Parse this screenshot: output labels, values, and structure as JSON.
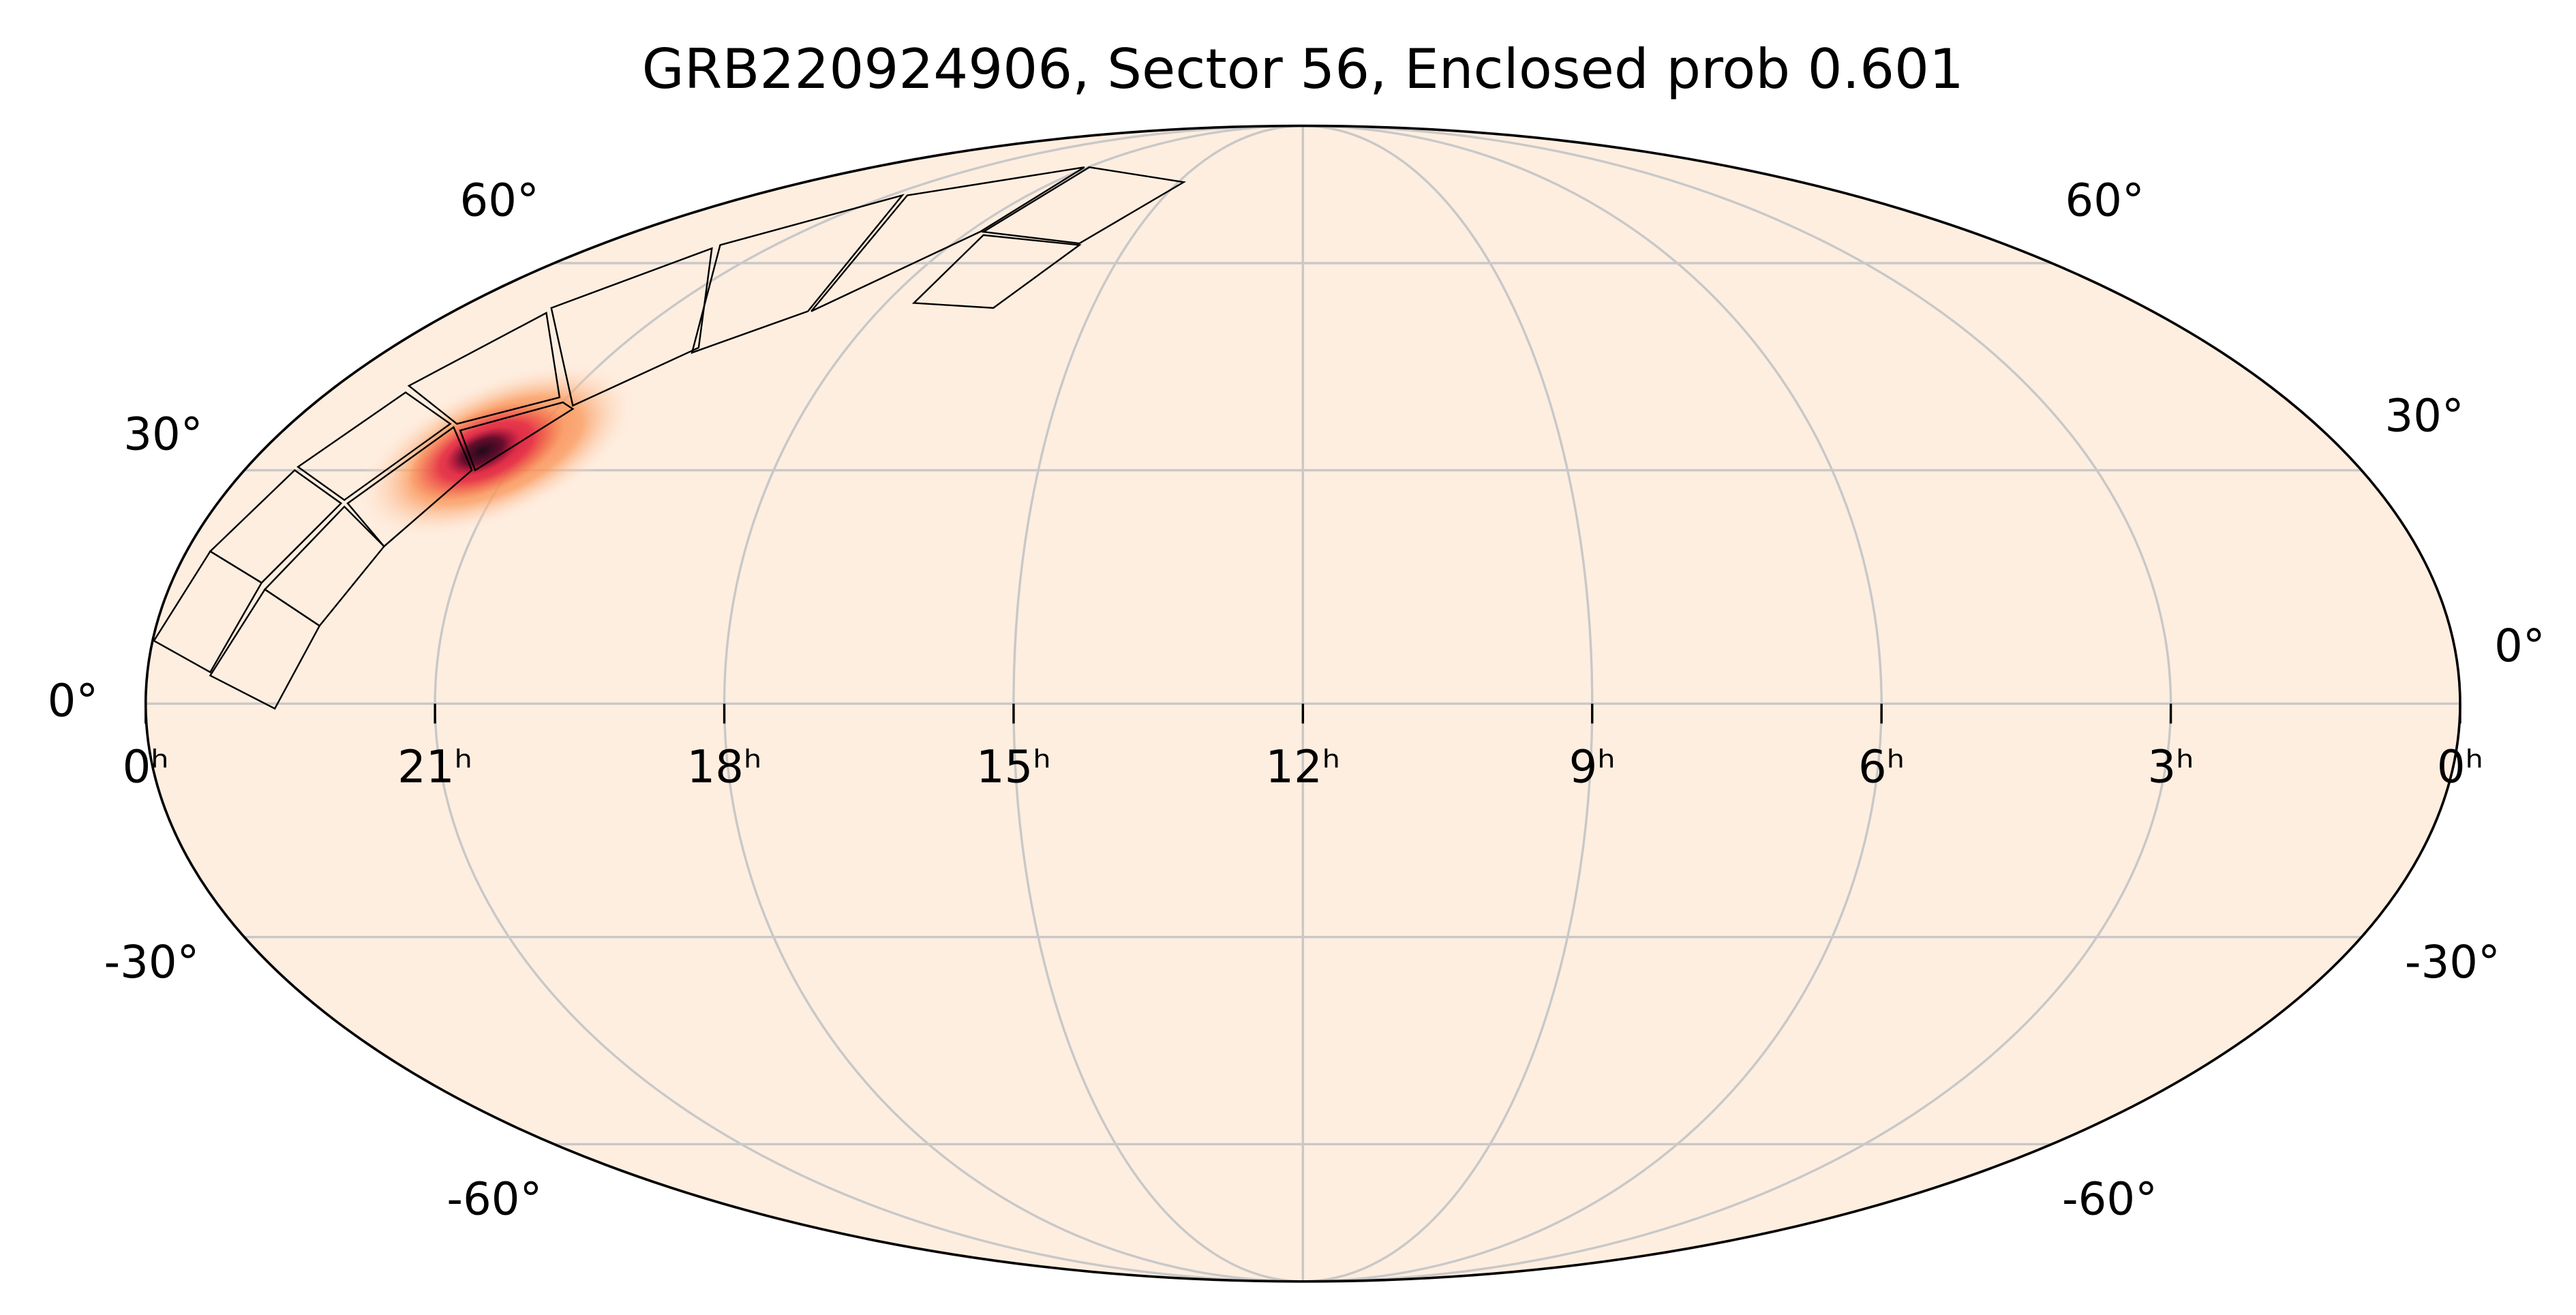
{
  "chart_data": {
    "type": "mollweide",
    "title": "GRB220924906, Sector 56, Enclosed prob 0.601",
    "xlim": [
      24,
      0
    ],
    "ylim": [
      -90,
      90
    ],
    "xticks": [
      {
        "value": 24,
        "label": "0ʰ"
      },
      {
        "value": 21,
        "label": "21ʰ"
      },
      {
        "value": 18,
        "label": "18ʰ"
      },
      {
        "value": 15,
        "label": "15ʰ"
      },
      {
        "value": 12,
        "label": "12ʰ"
      },
      {
        "value": 9,
        "label": "9ʰ"
      },
      {
        "value": 6,
        "label": "6ʰ"
      },
      {
        "value": 3,
        "label": "3ʰ"
      },
      {
        "value": 0,
        "label": "0ʰ"
      }
    ],
    "yticks": [
      {
        "value": 60,
        "label": "60°"
      },
      {
        "value": 30,
        "label": "30°"
      },
      {
        "value": 0,
        "label": "0°"
      },
      {
        "value": -30,
        "label": "-30°"
      },
      {
        "value": -60,
        "label": "-60°"
      }
    ],
    "grid": true
  }
}
